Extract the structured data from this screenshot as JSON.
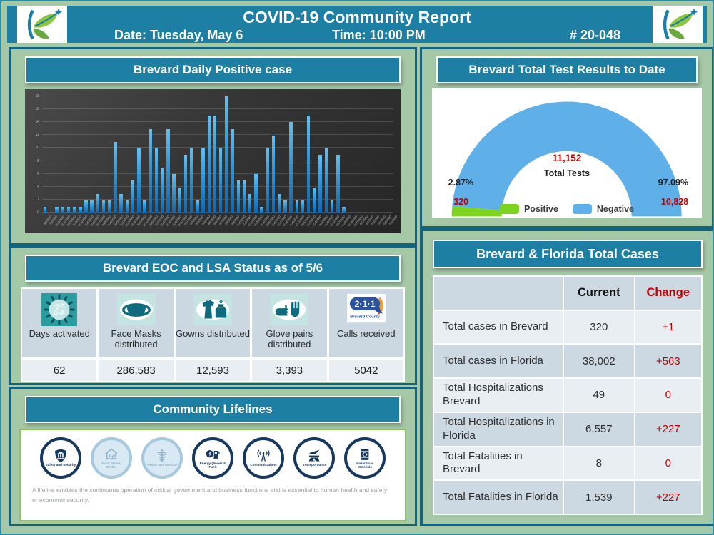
{
  "header": {
    "title": "COVID-19 Community Report",
    "date_label": "Date: Tuesday, May 6",
    "time_label": "Time: 10:00 PM",
    "report_number": "# 20-048",
    "logo": "brevard-county-logo"
  },
  "daily_chart": {
    "title": "Brevard Daily Positive case"
  },
  "test_results": {
    "title": "Brevard Total Test Results to Date",
    "total_value": "11,152",
    "total_label": "Total Tests",
    "positive_pct": "2.87%",
    "positive_count": "320",
    "negative_pct": "97.09%",
    "negative_count": "10,828",
    "legend_positive": "Positive",
    "legend_negative": "Negative"
  },
  "chart_data": [
    {
      "type": "bar",
      "title": "Brevard Daily Positive case",
      "x": [
        "3/8/2020",
        "3/9/2020",
        "3/10/2020",
        "3/11/2020",
        "3/12/2020",
        "3/13/2020",
        "3/14/2020",
        "3/15/2020",
        "3/16/2020",
        "3/17/2020",
        "3/18/2020",
        "3/19/2020",
        "3/20/2020",
        "3/21/2020",
        "3/22/2020",
        "3/23/2020",
        "3/24/2020",
        "3/25/2020",
        "3/26/2020",
        "3/27/2020",
        "3/28/2020",
        "3/29/2020",
        "3/30/2020",
        "3/31/2020",
        "4/1/2020",
        "4/2/2020",
        "4/3/2020",
        "4/4/2020",
        "4/5/2020",
        "4/6/2020",
        "4/7/2020",
        "4/8/2020",
        "4/9/2020",
        "4/10/2020",
        "4/11/2020",
        "4/12/2020",
        "4/13/2020",
        "4/14/2020",
        "4/15/2020",
        "4/16/2020",
        "4/17/2020",
        "4/18/2020",
        "4/19/2020",
        "4/20/2020",
        "4/21/2020",
        "4/22/2020",
        "4/23/2020",
        "4/24/2020",
        "4/25/2020",
        "4/26/2020",
        "4/27/2020",
        "4/28/2020",
        "4/29/2020",
        "4/30/2020",
        "5/1/2020",
        "5/2/2020",
        "5/3/2020",
        "5/4/2020",
        "5/5/2020",
        "5/6/2020"
      ],
      "values": [
        1,
        0,
        1,
        1,
        1,
        1,
        1,
        2,
        2,
        3,
        2,
        2,
        11,
        3,
        2,
        5,
        10,
        2,
        13,
        10,
        7,
        13,
        6,
        4,
        9,
        10,
        2,
        10,
        15,
        15,
        10,
        18,
        13,
        5,
        5,
        3,
        6,
        1,
        10,
        12,
        3,
        2,
        14,
        2,
        2,
        15,
        4,
        9,
        10,
        2,
        9,
        1,
        0,
        0,
        0,
        0,
        0,
        0,
        0,
        0
      ],
      "ylim": [
        0,
        18
      ],
      "ytick_step": 2,
      "grid": true,
      "bar_color": "#2f9ee0",
      "background": "#383838",
      "legend_position": "none"
    },
    {
      "type": "pie",
      "style": "half-donut",
      "title": "Brevard Total Test Results to Date",
      "slices": [
        {
          "label": "Positive",
          "value": 320,
          "pct": "2.87%",
          "color": "#7ed321"
        },
        {
          "label": "Negative",
          "value": 10828,
          "pct": "97.09%",
          "color": "#5fb0e8"
        }
      ],
      "center_value": "11,152",
      "center_label": "Total Tests",
      "legend_position": "bottom"
    }
  ],
  "eoc_status": {
    "title": "Brevard EOC and LSA Status as of 5/6",
    "items": [
      {
        "icon": "virus-icon",
        "label": "Days activated",
        "value": "62"
      },
      {
        "icon": "face-mask-icon",
        "label": "Face Masks distributed",
        "value": "286,583"
      },
      {
        "icon": "gown-icon",
        "label": "Gowns distributed",
        "value": "12,593"
      },
      {
        "icon": "gloves-icon",
        "label": "Glove pairs distributed",
        "value": "3,393"
      },
      {
        "icon": "211-brevard-county-logo",
        "label": "Calls received",
        "value": "5042",
        "logo_text": "2·1·1",
        "logo_subtext": "Brevard County"
      }
    ]
  },
  "lifelines": {
    "title": "Community Lifelines",
    "items": [
      {
        "icon": "safety-security-icon",
        "label": "Safety and Security",
        "active": true
      },
      {
        "icon": "food-water-shelter-icon",
        "label": "Food, Water, Shelter",
        "active": false
      },
      {
        "icon": "health-medical-icon",
        "label": "Health and Medical",
        "active": false
      },
      {
        "icon": "energy-icon",
        "label": "Energy (Power & Fuel)",
        "active": true
      },
      {
        "icon": "communications-icon",
        "label": "Communications",
        "active": true
      },
      {
        "icon": "transportation-icon",
        "label": "Transportation",
        "active": true
      },
      {
        "icon": "hazardous-materials-icon",
        "label": "Hazardous Materials",
        "active": true
      }
    ],
    "caption": "A lifeline enables the continuous operation of critical government and business functions and is essential to human health and safety or economic security."
  },
  "cases_table": {
    "title": "Brevard & Florida Total Cases",
    "columns": {
      "current": "Current",
      "change": "Change"
    },
    "rows": [
      {
        "label": "Total cases in Brevard",
        "current": "320",
        "change": "+1"
      },
      {
        "label": "Total cases in Florida",
        "current": "38,002",
        "change": "+563"
      },
      {
        "label": "Total  Hospitalizations Brevard",
        "current": "49",
        "change": "0"
      },
      {
        "label": "Total  Hospitalizations in Florida",
        "current": "6,557",
        "change": "+227"
      },
      {
        "label": "Total Fatalities in Brevard",
        "current": "8",
        "change": "0"
      },
      {
        "label": "Total Fatalities in Florida",
        "current": "1,539",
        "change": "+227"
      }
    ]
  },
  "colors": {
    "teal_band": "#1e7fa4",
    "panel_border": "#14647f",
    "page_bg": "#a5c8a7",
    "accent_red": "#c00000",
    "positive_green": "#7ed321",
    "negative_blue": "#5fb0e8",
    "lifeline_navy": "#16375e"
  }
}
